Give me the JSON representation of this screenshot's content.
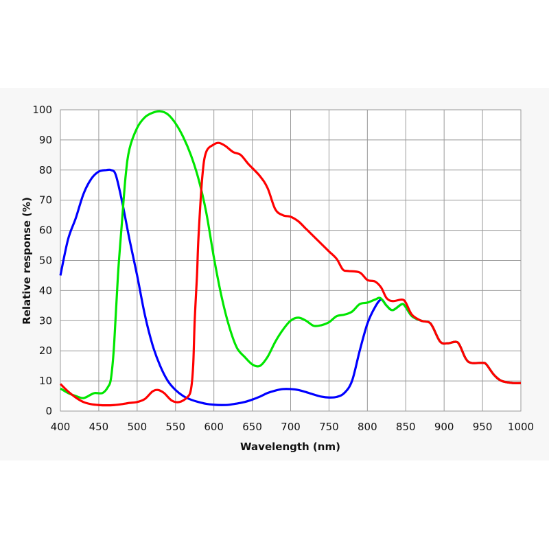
{
  "chart_data": {
    "type": "line",
    "title": "",
    "xlabel": "Wavelength (nm)",
    "ylabel": "Relative response (%)",
    "xlim": [
      400,
      1000
    ],
    "ylim": [
      0,
      100
    ],
    "xticks": [
      "400",
      "450",
      "500",
      "550",
      "600",
      "650",
      "700",
      "750",
      "800",
      "850",
      "900",
      "950",
      "1000"
    ],
    "yticks": [
      "0",
      "10",
      "20",
      "30",
      "40",
      "50",
      "60",
      "70",
      "80",
      "90",
      "100"
    ],
    "grid": true,
    "series": [
      {
        "color": "#0000ff",
        "points": [
          [
            400,
            45
          ],
          [
            410,
            57
          ],
          [
            420,
            64
          ],
          [
            430,
            72
          ],
          [
            440,
            77
          ],
          [
            450,
            79.5
          ],
          [
            460,
            80
          ],
          [
            466,
            80
          ],
          [
            472,
            78.5
          ],
          [
            480,
            70
          ],
          [
            490,
            57
          ],
          [
            500,
            45
          ],
          [
            510,
            32
          ],
          [
            520,
            22
          ],
          [
            530,
            15
          ],
          [
            540,
            10
          ],
          [
            550,
            7
          ],
          [
            560,
            5
          ],
          [
            570,
            3.8
          ],
          [
            580,
            3
          ],
          [
            590,
            2.4
          ],
          [
            600,
            2.1
          ],
          [
            610,
            2
          ],
          [
            620,
            2.1
          ],
          [
            630,
            2.5
          ],
          [
            640,
            3
          ],
          [
            650,
            3.8
          ],
          [
            660,
            4.8
          ],
          [
            670,
            6
          ],
          [
            680,
            6.8
          ],
          [
            690,
            7.3
          ],
          [
            700,
            7.3
          ],
          [
            710,
            7
          ],
          [
            720,
            6.3
          ],
          [
            730,
            5.5
          ],
          [
            740,
            4.8
          ],
          [
            750,
            4.5
          ],
          [
            760,
            4.7
          ],
          [
            770,
            6
          ],
          [
            780,
            10
          ],
          [
            790,
            20
          ],
          [
            800,
            29
          ],
          [
            810,
            34.5
          ],
          [
            818,
            37
          ],
          [
            825,
            35
          ],
          [
            833,
            33.5
          ],
          [
            845,
            35.5
          ],
          [
            850,
            34.5
          ],
          [
            858,
            31.5
          ],
          [
            870,
            30
          ],
          [
            880,
            29.5
          ],
          [
            885,
            28
          ],
          [
            895,
            23
          ],
          [
            905,
            22.5
          ],
          [
            915,
            23
          ],
          [
            920,
            22
          ],
          [
            928,
            17.5
          ],
          [
            935,
            16
          ],
          [
            950,
            16
          ],
          [
            955,
            15.5
          ],
          [
            965,
            12
          ],
          [
            975,
            10
          ],
          [
            990,
            9.3
          ],
          [
            1000,
            9.3
          ]
        ]
      },
      {
        "color": "#00e600",
        "points": [
          [
            400,
            7.5
          ],
          [
            410,
            6
          ],
          [
            420,
            5
          ],
          [
            430,
            4.3
          ],
          [
            440,
            5.5
          ],
          [
            445,
            6
          ],
          [
            455,
            6
          ],
          [
            462,
            8
          ],
          [
            466,
            11
          ],
          [
            470,
            22
          ],
          [
            475,
            45
          ],
          [
            480,
            62
          ],
          [
            485,
            78
          ],
          [
            490,
            87
          ],
          [
            500,
            94
          ],
          [
            510,
            97.5
          ],
          [
            520,
            99
          ],
          [
            530,
            99.5
          ],
          [
            540,
            98.5
          ],
          [
            550,
            95.5
          ],
          [
            560,
            91
          ],
          [
            570,
            85
          ],
          [
            580,
            77
          ],
          [
            590,
            66
          ],
          [
            600,
            51
          ],
          [
            610,
            38
          ],
          [
            620,
            28
          ],
          [
            630,
            21
          ],
          [
            640,
            18
          ],
          [
            650,
            15.5
          ],
          [
            660,
            15
          ],
          [
            670,
            18
          ],
          [
            680,
            23
          ],
          [
            690,
            27
          ],
          [
            700,
            30
          ],
          [
            710,
            31
          ],
          [
            720,
            30
          ],
          [
            730,
            28.3
          ],
          [
            740,
            28.5
          ],
          [
            750,
            29.5
          ],
          [
            760,
            31.5
          ],
          [
            770,
            32
          ],
          [
            780,
            33
          ],
          [
            790,
            35.5
          ],
          [
            800,
            36
          ],
          [
            810,
            37
          ],
          [
            817,
            37.5
          ],
          [
            825,
            35
          ],
          [
            833,
            33.5
          ],
          [
            845,
            35.5
          ],
          [
            850,
            34.5
          ],
          [
            858,
            31.5
          ],
          [
            870,
            30
          ],
          [
            880,
            29.5
          ],
          [
            885,
            28
          ],
          [
            895,
            23
          ],
          [
            905,
            22.5
          ],
          [
            915,
            23
          ],
          [
            920,
            22
          ],
          [
            928,
            17.5
          ],
          [
            935,
            16
          ],
          [
            950,
            16
          ],
          [
            955,
            15.5
          ],
          [
            965,
            12
          ],
          [
            975,
            10
          ],
          [
            990,
            9.3
          ],
          [
            1000,
            9.3
          ]
        ]
      },
      {
        "color": "#ff0000",
        "points": [
          [
            400,
            9
          ],
          [
            410,
            6.5
          ],
          [
            420,
            4.5
          ],
          [
            430,
            3
          ],
          [
            440,
            2.3
          ],
          [
            450,
            2
          ],
          [
            460,
            1.9
          ],
          [
            470,
            2
          ],
          [
            480,
            2.3
          ],
          [
            490,
            2.7
          ],
          [
            500,
            3
          ],
          [
            510,
            4
          ],
          [
            520,
            6.5
          ],
          [
            527,
            7
          ],
          [
            535,
            6
          ],
          [
            545,
            3.5
          ],
          [
            555,
            3
          ],
          [
            565,
            4.5
          ],
          [
            570,
            7
          ],
          [
            573,
            15
          ],
          [
            575,
            30
          ],
          [
            578,
            45
          ],
          [
            580,
            58
          ],
          [
            585,
            78
          ],
          [
            590,
            86
          ],
          [
            600,
            88.5
          ],
          [
            607,
            89
          ],
          [
            615,
            88
          ],
          [
            625,
            86
          ],
          [
            635,
            85
          ],
          [
            645,
            82
          ],
          [
            660,
            78
          ],
          [
            670,
            74
          ],
          [
            680,
            67
          ],
          [
            690,
            65
          ],
          [
            700,
            64.5
          ],
          [
            710,
            63
          ],
          [
            720,
            60.5
          ],
          [
            730,
            58
          ],
          [
            740,
            55.5
          ],
          [
            750,
            53
          ],
          [
            760,
            50.5
          ],
          [
            768,
            47
          ],
          [
            775,
            46.5
          ],
          [
            790,
            46
          ],
          [
            800,
            43.5
          ],
          [
            810,
            43
          ],
          [
            818,
            41
          ],
          [
            825,
            37.5
          ],
          [
            833,
            36.5
          ],
          [
            845,
            37
          ],
          [
            850,
            36
          ],
          [
            858,
            32
          ],
          [
            870,
            30
          ],
          [
            880,
            29.5
          ],
          [
            885,
            28
          ],
          [
            895,
            23
          ],
          [
            905,
            22.5
          ],
          [
            915,
            23
          ],
          [
            920,
            22
          ],
          [
            928,
            17.5
          ],
          [
            935,
            16
          ],
          [
            950,
            16
          ],
          [
            955,
            15.5
          ],
          [
            965,
            12
          ],
          [
            975,
            10
          ],
          [
            990,
            9.3
          ],
          [
            1000,
            9.3
          ]
        ]
      }
    ]
  }
}
